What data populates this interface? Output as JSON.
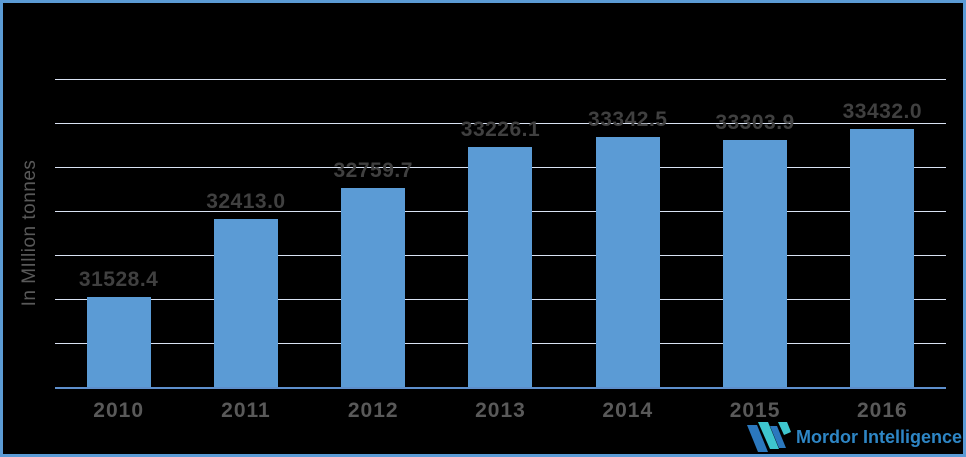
{
  "meta": {
    "background_color": "#000000",
    "frame_border_color": "#5B9BD5"
  },
  "y_axis_title": "In MIllion tonnes",
  "chart_data": {
    "type": "bar",
    "categories": [
      "2010",
      "2011",
      "2012",
      "2013",
      "2014",
      "2015",
      "2016"
    ],
    "values": [
      31528.4,
      32413.0,
      32759.7,
      33226.1,
      33342.5,
      33303.9,
      33432.0
    ],
    "data_labels": [
      "31528.4",
      "32413.0",
      "32759.7",
      "33226.1",
      "33342.5",
      "33303.9",
      "33432.0"
    ],
    "title": "",
    "xlabel": "",
    "ylabel": "In MIllion tonnes",
    "ylim": [
      30500,
      34000
    ],
    "grid_step": 500,
    "grid": "horizontal-only",
    "legend_position": "none",
    "bar_color": "#5B9BD5",
    "gridline_color": "#D9E2F3",
    "axis_line_color": "#5E8FCC",
    "data_label_color": "#404040",
    "axis_text_color": "#595959"
  },
  "watermark": {
    "brand_text": "Mordor Intelligence",
    "text_color": "#2E86C5",
    "icon_blue": "#2B78BE",
    "icon_teal": "#3EC6CE"
  }
}
